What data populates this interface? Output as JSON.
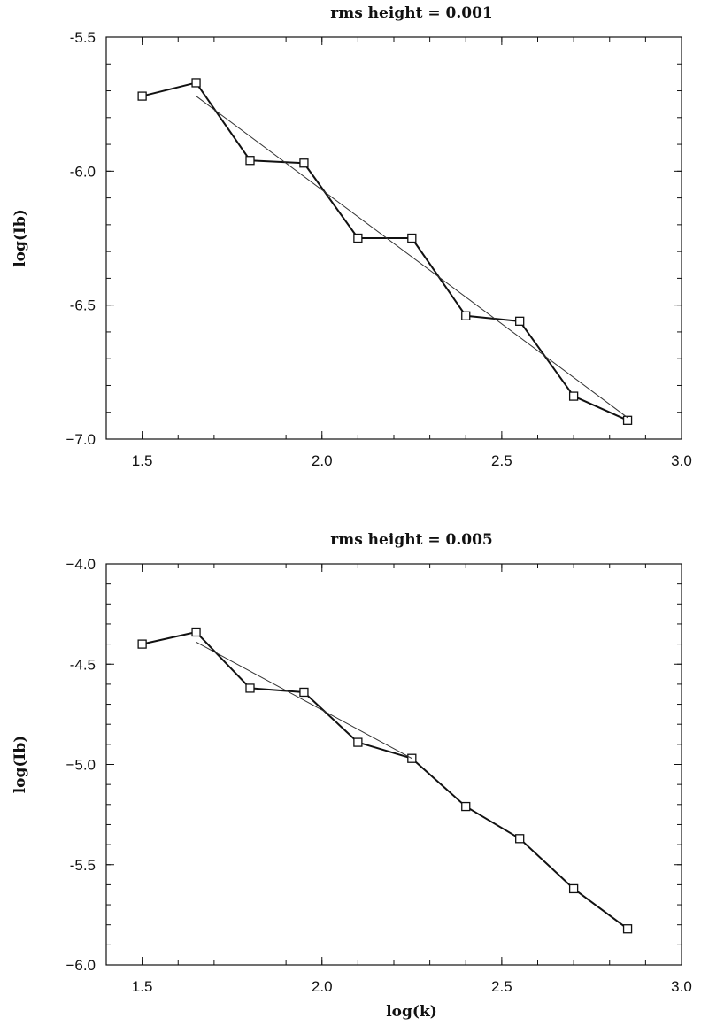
{
  "chart_data": [
    {
      "type": "line",
      "title": "rms height = 0.001",
      "xlabel": "",
      "ylabel": "log(Ib)",
      "xlim": [
        1.4,
        3.0
      ],
      "ylim": [
        -7.0,
        -5.5
      ],
      "xticks": [
        1.5,
        2.0,
        2.5,
        3.0
      ],
      "xtick_labels": [
        "1.5",
        "2.0",
        "2.5",
        "3.0"
      ],
      "yticks": [
        -7.0,
        -6.5,
        -6.0,
        -5.5
      ],
      "ytick_labels": [
        "−7.0",
        "-6.5",
        "-6.0",
        "-5.5"
      ],
      "grid": false,
      "series": [
        {
          "style": "data",
          "marker": "square",
          "x": [
            1.5,
            1.65,
            1.8,
            1.95,
            2.1,
            2.25,
            2.4,
            2.55,
            2.7,
            2.85
          ],
          "y": [
            -5.72,
            -5.67,
            -5.96,
            -5.97,
            -6.25,
            -6.25,
            -6.54,
            -6.56,
            -6.84,
            -6.93
          ]
        },
        {
          "style": "fit",
          "x": [
            1.65,
            2.85
          ],
          "y": [
            -5.72,
            -6.92
          ]
        }
      ]
    },
    {
      "type": "line",
      "title": "rms height = 0.005",
      "xlabel": "log(k)",
      "ylabel": "log(Ib)",
      "xlim": [
        1.4,
        3.0
      ],
      "ylim": [
        -6.0,
        -4.0
      ],
      "xticks": [
        1.5,
        2.0,
        2.5,
        3.0
      ],
      "xtick_labels": [
        "1.5",
        "2.0",
        "2.5",
        "3.0"
      ],
      "yticks": [
        -6.0,
        -5.5,
        -5.0,
        -4.5,
        -4.0
      ],
      "ytick_labels": [
        "−6.0",
        "-5.5",
        "−5.0",
        "-4.5",
        "−4.0"
      ],
      "grid": false,
      "series": [
        {
          "style": "data",
          "marker": "square",
          "x": [
            1.5,
            1.65,
            1.8,
            1.95,
            2.1,
            2.25,
            2.4,
            2.55,
            2.7,
            2.85
          ],
          "y": [
            -4.4,
            -4.34,
            -4.62,
            -4.64,
            -4.89,
            -4.97,
            -5.21,
            -5.37,
            -5.62,
            -5.82
          ]
        },
        {
          "style": "fit",
          "x": [
            1.65,
            2.25
          ],
          "y": [
            -4.39,
            -4.97
          ]
        }
      ]
    }
  ]
}
